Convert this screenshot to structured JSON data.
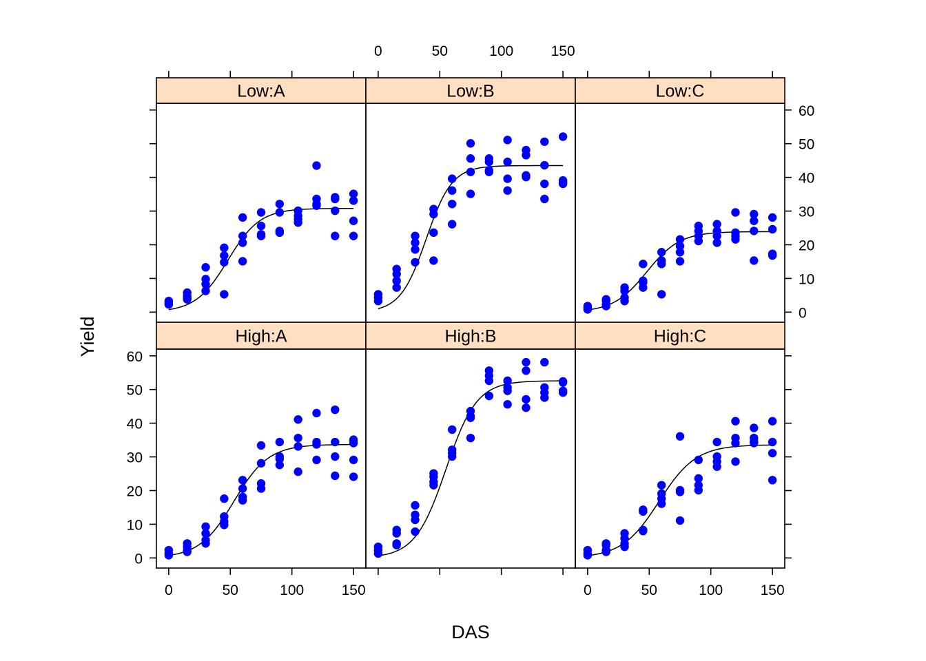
{
  "chart_data": {
    "type": "scatter",
    "layout": "trellis 3 columns x 2 rows",
    "xlabel": "DAS",
    "ylabel": "Yield",
    "xlim": [
      -10,
      160
    ],
    "ylim": [
      -3,
      62
    ],
    "x_ticks": [
      "0",
      "50",
      "100",
      "150"
    ],
    "y_ticks": [
      "0",
      "10",
      "20",
      "30",
      "40",
      "50",
      "60"
    ],
    "colors": {
      "points": "#0000ff",
      "fit_line": "#000000",
      "strip_bg": "#ffdfc2",
      "frame": "#000000"
    },
    "panels": [
      {
        "label": "Low:A",
        "fit": {
          "asym": 30.8,
          "mid": 48,
          "scale": 13
        },
        "x": [
          0,
          0,
          0,
          15,
          15,
          15,
          15,
          30,
          30,
          30,
          30,
          45,
          45,
          45,
          45,
          60,
          60,
          60,
          60,
          75,
          75,
          75,
          75,
          90,
          90,
          90,
          90,
          105,
          105,
          105,
          105,
          120,
          120,
          120,
          120,
          135,
          135,
          135,
          135,
          150,
          150,
          150,
          150
        ],
        "y": [
          2.8,
          3.3,
          2.3,
          3.8,
          4.8,
          5.8,
          4.3,
          13.3,
          9.8,
          8.3,
          6.3,
          19.1,
          16.8,
          14.8,
          5.3,
          28.1,
          22.6,
          20.6,
          15.1,
          29.6,
          25.6,
          23.1,
          22.6,
          32.1,
          29.6,
          24.1,
          23.6,
          30.1,
          28.6,
          26.6,
          27.6,
          43.5,
          33.6,
          31.6,
          32.1,
          34.1,
          30.1,
          22.6,
          33.6,
          35.1,
          33.1,
          27.1,
          22.6
        ]
      },
      {
        "label": "Low:B",
        "fit": {
          "asym": 43.5,
          "mid": 39,
          "scale": 10.5
        },
        "x": [
          0,
          0,
          0,
          15,
          15,
          15,
          15,
          30,
          30,
          30,
          30,
          45,
          45,
          45,
          45,
          60,
          60,
          60,
          60,
          75,
          75,
          75,
          75,
          90,
          90,
          90,
          90,
          105,
          105,
          105,
          105,
          120,
          120,
          120,
          120,
          135,
          135,
          135,
          135,
          150,
          150,
          150,
          150
        ],
        "y": [
          5.3,
          4.3,
          3.3,
          12.8,
          11.3,
          9.3,
          7.3,
          22.6,
          20.6,
          18.6,
          14.8,
          30.6,
          29.1,
          23.6,
          15.3,
          39.6,
          36.1,
          32.1,
          26.1,
          50.1,
          45.6,
          41.6,
          35.1,
          45.6,
          44.6,
          42.1,
          41.6,
          51.1,
          44.6,
          39.6,
          36.1,
          48.1,
          46.6,
          40.6,
          40.1,
          50.6,
          43.6,
          38.1,
          33.6,
          52.1,
          39.1,
          38.6,
          38.1
        ]
      },
      {
        "label": "Low:C",
        "fit": {
          "asym": 23.9,
          "mid": 48,
          "scale": 13.5
        },
        "x": [
          0,
          0,
          0,
          15,
          15,
          15,
          15,
          30,
          30,
          30,
          30,
          45,
          45,
          45,
          45,
          60,
          60,
          60,
          60,
          75,
          75,
          75,
          75,
          90,
          90,
          90,
          90,
          105,
          105,
          105,
          105,
          120,
          120,
          120,
          120,
          135,
          135,
          135,
          135,
          150,
          150,
          150,
          150
        ],
        "y": [
          1.8,
          1.3,
          0.8,
          3.8,
          3.3,
          2.3,
          1.8,
          7.3,
          6.3,
          4.3,
          3.3,
          14.3,
          9.3,
          8.8,
          7.3,
          17.8,
          15.3,
          14.3,
          5.3,
          21.6,
          19.6,
          17.8,
          15.1,
          25.6,
          24.1,
          22.6,
          21.1,
          26.1,
          24.1,
          22.6,
          20.6,
          29.6,
          23.6,
          22.6,
          21.6,
          29.1,
          27.1,
          24.1,
          15.3,
          28.1,
          24.6,
          17.3,
          16.8
        ]
      },
      {
        "label": "High:A",
        "fit": {
          "asym": 33.7,
          "mid": 53,
          "scale": 14
        },
        "x": [
          0,
          0,
          0,
          15,
          15,
          15,
          15,
          30,
          30,
          30,
          30,
          45,
          45,
          45,
          45,
          60,
          60,
          60,
          60,
          75,
          75,
          75,
          75,
          90,
          90,
          90,
          90,
          105,
          105,
          105,
          105,
          120,
          120,
          120,
          120,
          135,
          135,
          135,
          135,
          150,
          150,
          150,
          150
        ],
        "y": [
          2.3,
          1.3,
          0.8,
          4.3,
          3.3,
          2.3,
          1.8,
          9.3,
          7.3,
          5.3,
          4.3,
          17.6,
          12.3,
          10.8,
          9.8,
          23.1,
          20.6,
          18.1,
          17.1,
          33.4,
          28.1,
          22.1,
          20.6,
          34.4,
          30.1,
          29.4,
          27.6,
          41.1,
          35.6,
          33.1,
          25.6,
          43.0,
          34.4,
          33.7,
          29.1,
          44.0,
          34.4,
          30.1,
          24.4,
          35.1,
          34.1,
          29.1,
          24.1
        ]
      },
      {
        "label": "High:B",
        "fit": {
          "asym": 52.6,
          "mid": 55,
          "scale": 12.5
        },
        "x": [
          0,
          0,
          0,
          15,
          15,
          15,
          15,
          30,
          30,
          30,
          30,
          45,
          45,
          45,
          45,
          60,
          60,
          60,
          60,
          75,
          75,
          75,
          75,
          90,
          90,
          90,
          90,
          105,
          105,
          105,
          105,
          120,
          120,
          120,
          120,
          135,
          135,
          135,
          135,
          150,
          150,
          150,
          150
        ],
        "y": [
          3.3,
          2.3,
          1.3,
          8.3,
          7.3,
          4.3,
          3.8,
          15.6,
          12.8,
          11.3,
          7.8,
          25.1,
          24.1,
          22.6,
          21.6,
          38.1,
          32.1,
          31.1,
          30.1,
          43.6,
          42.1,
          41.6,
          35.6,
          55.6,
          54.1,
          52.6,
          48.1,
          52.6,
          50.6,
          49.6,
          45.6,
          58.1,
          55.6,
          47.1,
          44.6,
          58.1,
          50.6,
          49.1,
          47.6,
          52.4,
          52.1,
          49.6,
          49.1
        ]
      },
      {
        "label": "High:C",
        "fit": {
          "asym": 33.6,
          "mid": 58,
          "scale": 15
        },
        "x": [
          0,
          0,
          0,
          15,
          15,
          15,
          15,
          30,
          30,
          30,
          30,
          45,
          45,
          45,
          45,
          60,
          60,
          60,
          60,
          75,
          75,
          75,
          75,
          90,
          90,
          90,
          90,
          105,
          105,
          105,
          105,
          120,
          120,
          120,
          120,
          135,
          135,
          135,
          135,
          150,
          150,
          150,
          150
        ],
        "y": [
          2.3,
          1.3,
          0.8,
          4.3,
          3.8,
          2.3,
          1.8,
          7.3,
          5.8,
          4.3,
          3.3,
          14.3,
          13.8,
          8.3,
          8.0,
          21.6,
          19.1,
          17.6,
          16.1,
          36.1,
          20.1,
          19.6,
          11.1,
          29.1,
          23.6,
          21.6,
          20.1,
          34.4,
          30.1,
          28.6,
          27.1,
          40.6,
          35.6,
          34.1,
          28.6,
          38.6,
          35.6,
          34.6,
          34.1,
          40.6,
          34.4,
          31.1,
          23.1
        ]
      }
    ]
  }
}
